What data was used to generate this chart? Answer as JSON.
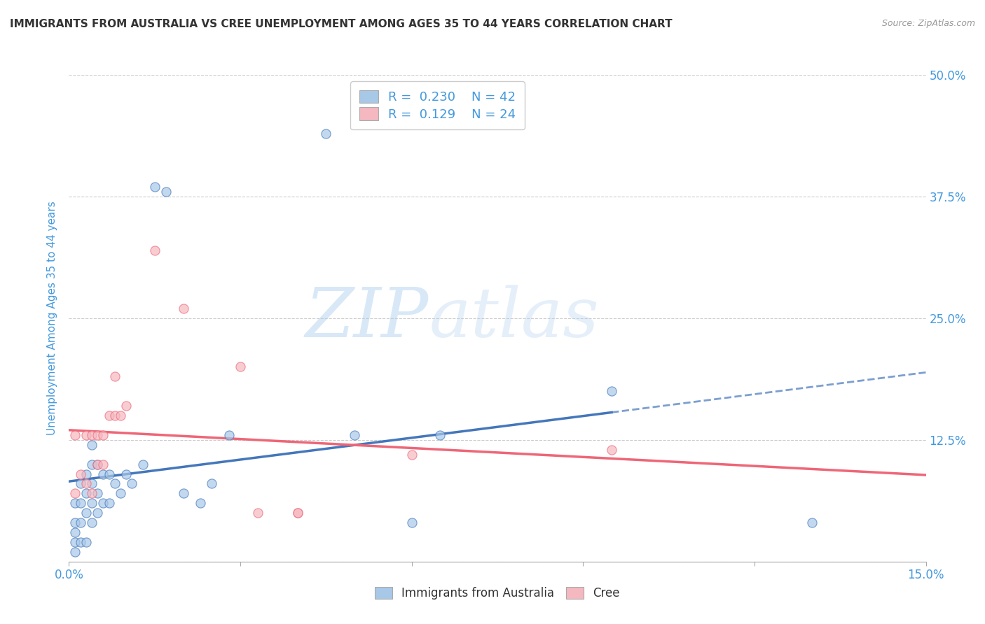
{
  "title": "IMMIGRANTS FROM AUSTRALIA VS CREE UNEMPLOYMENT AMONG AGES 35 TO 44 YEARS CORRELATION CHART",
  "source": "Source: ZipAtlas.com",
  "ylabel": "Unemployment Among Ages 35 to 44 years",
  "xlim": [
    0.0,
    0.15
  ],
  "ylim": [
    0.0,
    0.5
  ],
  "xticks": [
    0.0,
    0.03,
    0.06,
    0.09,
    0.12,
    0.15
  ],
  "xtick_labels": [
    "0.0%",
    "",
    "",
    "",
    "",
    "15.0%"
  ],
  "ytick_labels_right": [
    "",
    "12.5%",
    "25.0%",
    "37.5%",
    "50.0%"
  ],
  "yticks_right": [
    0.0,
    0.125,
    0.25,
    0.375,
    0.5
  ],
  "legend_labels": [
    "Immigrants from Australia",
    "Cree"
  ],
  "blue_color": "#a8c8e8",
  "pink_color": "#f5b8c0",
  "blue_line_color": "#4477bb",
  "pink_line_color": "#ee6677",
  "R_blue": 0.23,
  "N_blue": 42,
  "R_pink": 0.129,
  "N_pink": 24,
  "watermark_zip": "ZIP",
  "watermark_atlas": "atlas",
  "background_color": "#ffffff",
  "grid_color": "#cccccc",
  "title_color": "#333333",
  "axis_label_color": "#4499dd",
  "blue_x": [
    0.001,
    0.001,
    0.001,
    0.001,
    0.001,
    0.002,
    0.002,
    0.002,
    0.002,
    0.003,
    0.003,
    0.003,
    0.003,
    0.004,
    0.004,
    0.004,
    0.004,
    0.004,
    0.005,
    0.005,
    0.005,
    0.006,
    0.006,
    0.007,
    0.007,
    0.008,
    0.009,
    0.01,
    0.011,
    0.013,
    0.015,
    0.017,
    0.02,
    0.023,
    0.025,
    0.028,
    0.045,
    0.05,
    0.06,
    0.065,
    0.095,
    0.13
  ],
  "blue_y": [
    0.01,
    0.02,
    0.03,
    0.04,
    0.06,
    0.02,
    0.04,
    0.06,
    0.08,
    0.02,
    0.05,
    0.07,
    0.09,
    0.04,
    0.06,
    0.08,
    0.1,
    0.12,
    0.05,
    0.07,
    0.1,
    0.06,
    0.09,
    0.06,
    0.09,
    0.08,
    0.07,
    0.09,
    0.08,
    0.1,
    0.385,
    0.38,
    0.07,
    0.06,
    0.08,
    0.13,
    0.44,
    0.13,
    0.04,
    0.13,
    0.175,
    0.04
  ],
  "pink_x": [
    0.001,
    0.001,
    0.002,
    0.003,
    0.003,
    0.004,
    0.004,
    0.005,
    0.005,
    0.006,
    0.006,
    0.007,
    0.008,
    0.008,
    0.009,
    0.01,
    0.015,
    0.02,
    0.03,
    0.033,
    0.04,
    0.04,
    0.06,
    0.095
  ],
  "pink_y": [
    0.07,
    0.13,
    0.09,
    0.08,
    0.13,
    0.07,
    0.13,
    0.1,
    0.13,
    0.1,
    0.13,
    0.15,
    0.15,
    0.19,
    0.15,
    0.16,
    0.32,
    0.26,
    0.2,
    0.05,
    0.05,
    0.05,
    0.11,
    0.115
  ]
}
